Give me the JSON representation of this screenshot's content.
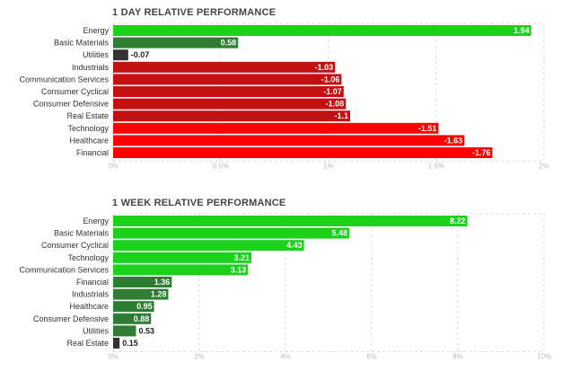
{
  "chart_data": [
    {
      "type": "bar",
      "orientation": "horizontal",
      "title": "1 DAY RELATIVE PERFORMANCE",
      "categories": [
        "Energy",
        "Basic Materials",
        "Utilities",
        "Industrials",
        "Communication Services",
        "Consumer Cyclical",
        "Consumer Defensive",
        "Real Estate",
        "Technology",
        "Healthcare",
        "Financial"
      ],
      "values": [
        1.94,
        0.58,
        -0.07,
        -1.03,
        -1.06,
        -1.07,
        -1.08,
        -1.1,
        -1.51,
        -1.63,
        -1.76
      ],
      "value_labels": [
        "1.94",
        "0.58",
        "-0.07",
        "-1.03",
        "-1.06",
        "-1.07",
        "-1.08",
        "-1.1",
        "-1.51",
        "-1.63",
        "-1.76"
      ],
      "xlim": [
        0,
        2
      ],
      "x_ticks": [
        "0%",
        "0.5%",
        "1%",
        "1.5%",
        "2%"
      ],
      "grid": true,
      "bar_magnitude": "absolute",
      "colors": {
        "strong_positive": "#19d219",
        "positive": "#2e7d32",
        "weak": "#333333",
        "negative": "#c41010",
        "strong_negative": "#ff0000"
      }
    },
    {
      "type": "bar",
      "orientation": "horizontal",
      "title": "1 WEEK RELATIVE PERFORMANCE",
      "categories": [
        "Energy",
        "Basic Materials",
        "Consumer Cyclical",
        "Technology",
        "Communication Services",
        "Financial",
        "Industrials",
        "Healthcare",
        "Consumer Defensive",
        "Utilities",
        "Real Estate"
      ],
      "values": [
        8.22,
        5.48,
        4.43,
        3.21,
        3.13,
        1.36,
        1.28,
        0.95,
        0.88,
        0.53,
        0.15
      ],
      "value_labels": [
        "8.22",
        "5.48",
        "4.43",
        "3.21",
        "3.13",
        "1.36",
        "1.28",
        "0.95",
        "0.88",
        "0.53",
        "0.15"
      ],
      "xlim": [
        0,
        10
      ],
      "x_ticks": [
        "0%",
        "2%",
        "4%",
        "6%",
        "8%",
        "10%"
      ],
      "grid": true,
      "bar_magnitude": "absolute",
      "colors": {
        "strong_positive": "#19d219",
        "positive": "#2e7d32",
        "weak": "#333333",
        "negative": "#c41010",
        "strong_negative": "#ff0000"
      }
    }
  ]
}
